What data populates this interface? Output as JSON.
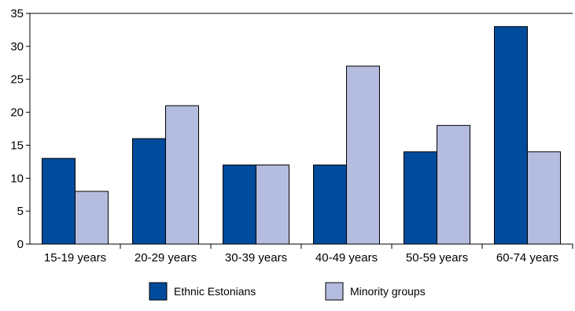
{
  "chart_data": {
    "type": "bar",
    "title": "",
    "xlabel": "",
    "ylabel": "",
    "ylim": [
      0,
      35
    ],
    "yticks": [
      0,
      5,
      10,
      15,
      20,
      25,
      30,
      35
    ],
    "grid": false,
    "legend_position": "bottom",
    "categories": [
      "15-19 years",
      "20-29 years",
      "30-39 years",
      "40-49 years",
      "50-59 years",
      "60-74 years"
    ],
    "series": [
      {
        "name": "Ethnic Estonians",
        "color": "#004b9b",
        "values": [
          13,
          16,
          12,
          12,
          14,
          33
        ]
      },
      {
        "name": "Minority groups",
        "color": "#b4bcdf",
        "values": [
          8,
          21,
          12,
          27,
          18,
          14
        ]
      }
    ]
  }
}
